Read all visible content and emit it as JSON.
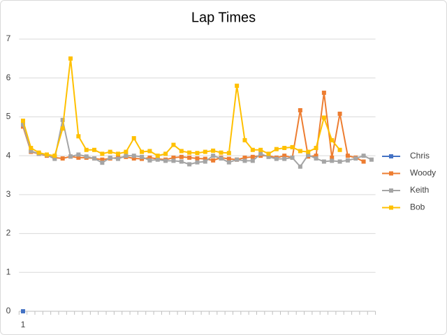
{
  "chart_data": {
    "type": "line",
    "title": "Lap Times",
    "categories": [
      "1",
      null,
      null,
      null,
      null,
      null,
      null,
      null,
      null,
      null,
      null,
      null,
      null,
      null,
      null,
      null,
      null,
      null,
      null,
      null,
      null,
      null,
      null,
      null,
      null,
      null,
      null,
      null,
      null,
      null,
      null,
      null,
      null,
      null,
      null,
      null,
      null,
      null,
      null,
      null,
      null,
      null,
      null,
      null,
      null
    ],
    "series": [
      {
        "name": "Chris",
        "color": "#4472c4",
        "values": [
          0,
          null,
          null,
          null,
          null,
          null,
          null,
          null,
          null,
          null,
          null,
          null,
          null,
          null,
          null,
          null,
          null,
          null,
          null,
          null,
          null,
          null,
          null,
          null,
          null,
          null,
          null,
          null,
          null,
          null,
          null,
          null,
          null,
          null,
          null,
          null,
          null,
          null,
          null,
          null,
          null,
          null,
          null,
          null,
          null
        ]
      },
      {
        "name": "Woody",
        "color": "#ed7d31",
        "values": [
          4.75,
          4.1,
          4.05,
          4.0,
          3.95,
          3.93,
          3.98,
          3.95,
          3.95,
          3.93,
          3.9,
          3.93,
          3.95,
          3.97,
          3.93,
          3.92,
          3.95,
          3.92,
          3.9,
          3.95,
          3.97,
          3.95,
          3.93,
          3.92,
          3.88,
          3.95,
          3.92,
          3.9,
          3.95,
          3.97,
          4.0,
          4.0,
          3.95,
          4.0,
          3.95,
          5.17,
          3.98,
          4.0,
          5.62,
          3.95,
          5.08,
          4.0,
          3.95,
          3.85,
          null
        ]
      },
      {
        "name": "Keith",
        "color": "#a5a5a5",
        "values": [
          4.8,
          4.12,
          4.05,
          4.02,
          3.92,
          4.92,
          3.98,
          4.03,
          3.98,
          3.93,
          3.82,
          3.95,
          3.92,
          4.0,
          4.0,
          3.97,
          3.88,
          3.9,
          3.87,
          3.87,
          3.85,
          3.78,
          3.83,
          3.85,
          4.0,
          3.93,
          3.83,
          3.9,
          3.87,
          3.87,
          4.05,
          3.97,
          3.92,
          3.92,
          3.95,
          3.72,
          4.02,
          3.93,
          3.85,
          3.87,
          3.85,
          3.88,
          3.93,
          4.0,
          3.9
        ]
      },
      {
        "name": "Bob",
        "color": "#ffc000",
        "values": [
          4.9,
          4.2,
          4.08,
          4.03,
          4.0,
          4.7,
          6.5,
          4.5,
          4.15,
          4.15,
          4.05,
          4.1,
          4.05,
          4.1,
          4.45,
          4.1,
          4.12,
          4.0,
          4.05,
          4.28,
          4.12,
          4.08,
          4.07,
          4.1,
          4.13,
          4.08,
          4.07,
          5.8,
          4.4,
          4.15,
          4.15,
          4.05,
          4.17,
          4.2,
          4.22,
          4.12,
          4.1,
          4.2,
          4.98,
          4.4,
          4.15,
          null,
          null,
          null,
          null
        ]
      }
    ],
    "ylim": [
      0,
      7
    ],
    "yticks": [
      0,
      1,
      2,
      3,
      4,
      5,
      6,
      7
    ],
    "grid": true,
    "legend": "right"
  }
}
